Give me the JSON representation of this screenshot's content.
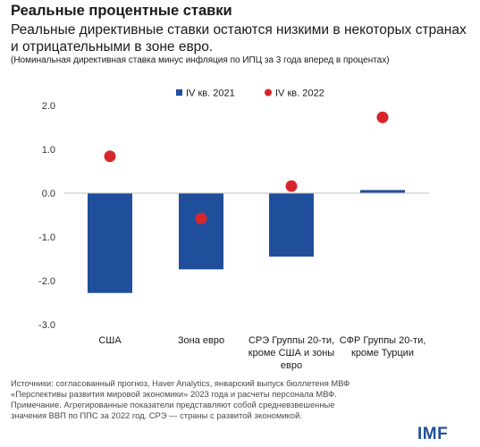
{
  "header": {
    "title": "Реальные процентные ставки",
    "subtitle": "Реальные директивные ставки остаются низкими в некоторых странах и отрицательными в зоне евро.",
    "note": "(Номинальная директивная ставка минус инфляция по ИПЦ за 3 года вперед в процентах)"
  },
  "chart_data": {
    "type": "bar",
    "categories": [
      [
        "США"
      ],
      [
        "Зона евро"
      ],
      [
        "СРЭ Группы 20-ти,",
        "кроме США и зоны",
        "евро"
      ],
      [
        "СФР Группы 20-ти,",
        "кроме Турции"
      ]
    ],
    "series": [
      {
        "name": "IV кв. 2021",
        "kind": "bar",
        "color": "#1f4f9a",
        "values": [
          -2.28,
          -1.74,
          -1.45,
          0.07
        ]
      },
      {
        "name": "IV кв. 2022",
        "kind": "dot",
        "color": "#d7262b",
        "values": [
          0.84,
          -0.58,
          0.16,
          1.73
        ]
      }
    ],
    "yticks": [
      "2.0",
      "1.0",
      "0.0",
      "-1.0",
      "-2.0",
      "-3.0"
    ],
    "ylim": [
      -3.0,
      2.0
    ],
    "legend": "top-center",
    "grid": false
  },
  "source": {
    "lines": [
      "Источники: согласованный прогноз, Haver Analytics, январский выпуск бюллетеня МВФ",
      "«Перспективы развития мировой экономики» 2023 года и расчеты персонала МВФ.",
      "Примечание. Агрегированные показатели представляют собой средневзвешенные",
      "значения ВВП по ППС за 2022 год. СРЭ — страны с развитой экономикой."
    ]
  },
  "logo": {
    "text": "IMF"
  }
}
